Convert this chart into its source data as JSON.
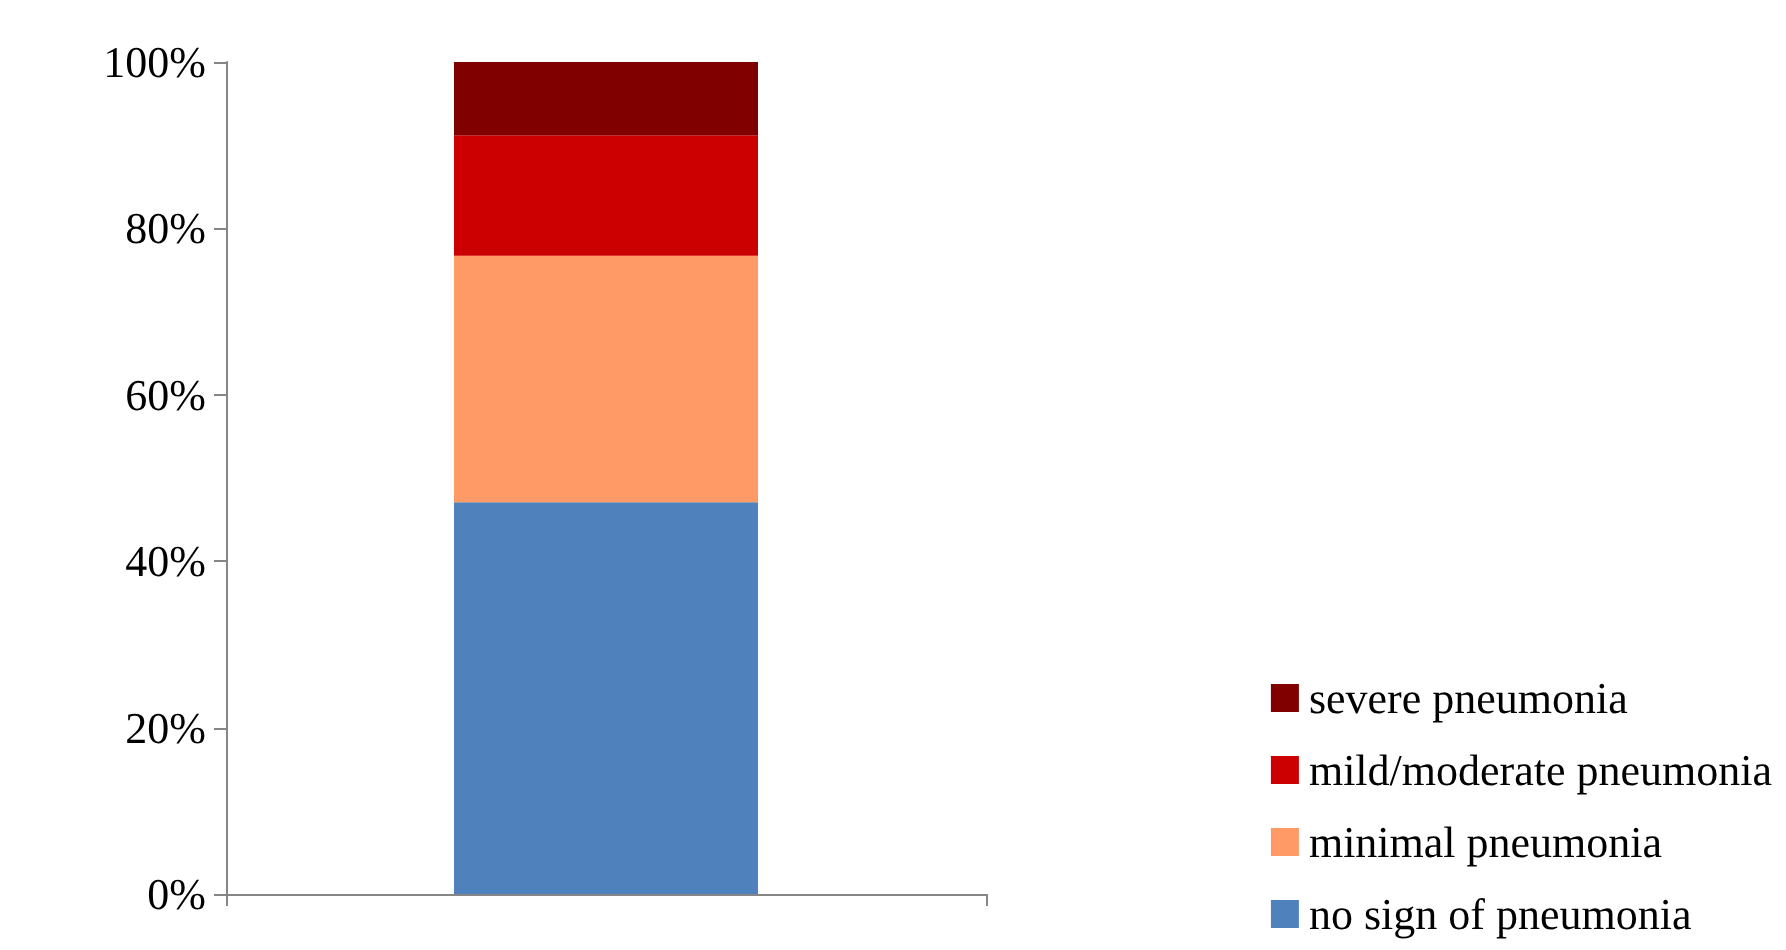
{
  "chart_data": {
    "type": "bar",
    "stacked": true,
    "categories": [
      null
    ],
    "series": [
      {
        "name": "no sign of pneumonia",
        "color": "#4f81bd",
        "values": [
          47.1
        ]
      },
      {
        "name": "minimal pneumonia",
        "color": "#ff9966",
        "values": [
          29.6
        ]
      },
      {
        "name": "mild/moderate pneumonia",
        "color": "#cc0000",
        "values": [
          14.5
        ]
      },
      {
        "name": "severe pneumonia",
        "color": "#800000",
        "values": [
          8.8
        ]
      }
    ],
    "ylim": [
      0,
      100
    ],
    "yticks": [
      {
        "value": 0,
        "label": "0%"
      },
      {
        "value": 20,
        "label": "20%"
      },
      {
        "value": 40,
        "label": "40%"
      },
      {
        "value": 60,
        "label": "60%"
      },
      {
        "value": 80,
        "label": "80%"
      },
      {
        "value": 100,
        "label": "100%"
      }
    ],
    "grid": false,
    "legend": "bottom right"
  }
}
